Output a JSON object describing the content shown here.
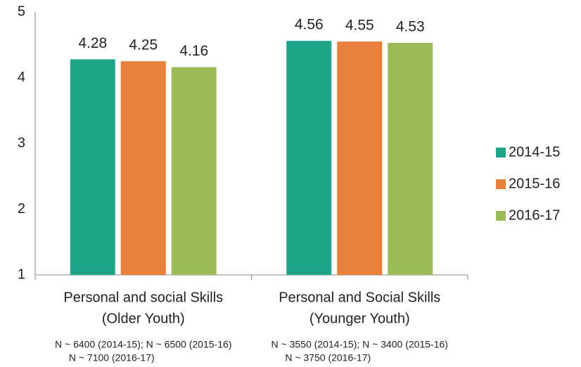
{
  "chart_data": {
    "type": "bar",
    "categories": [
      [
        "Personal and social Skills",
        "(Older Youth)"
      ],
      [
        "Personal and Social Skills",
        "(Younger Youth)"
      ]
    ],
    "notes": [
      [
        "N ~ 6400 (2014-15); N ~ 6500 (2015-16)",
        "N ~ 7100 (2016-17)"
      ],
      [
        "N ~ 3550 (2014-15); N ~ 3400 (2015-16)",
        "N ~ 3750 (2016-17)"
      ]
    ],
    "series": [
      {
        "name": "2014-15",
        "color": "#1fa58a",
        "values": [
          4.28,
          4.56
        ]
      },
      {
        "name": "2015-16",
        "color": "#e8803a",
        "values": [
          4.25,
          4.55
        ]
      },
      {
        "name": "2016-17",
        "color": "#9bbb59",
        "values": [
          4.16,
          4.53
        ]
      }
    ],
    "ylim": [
      1,
      5
    ],
    "yticks": [
      1,
      2,
      3,
      4,
      5
    ],
    "grid": false,
    "legend": "right"
  }
}
